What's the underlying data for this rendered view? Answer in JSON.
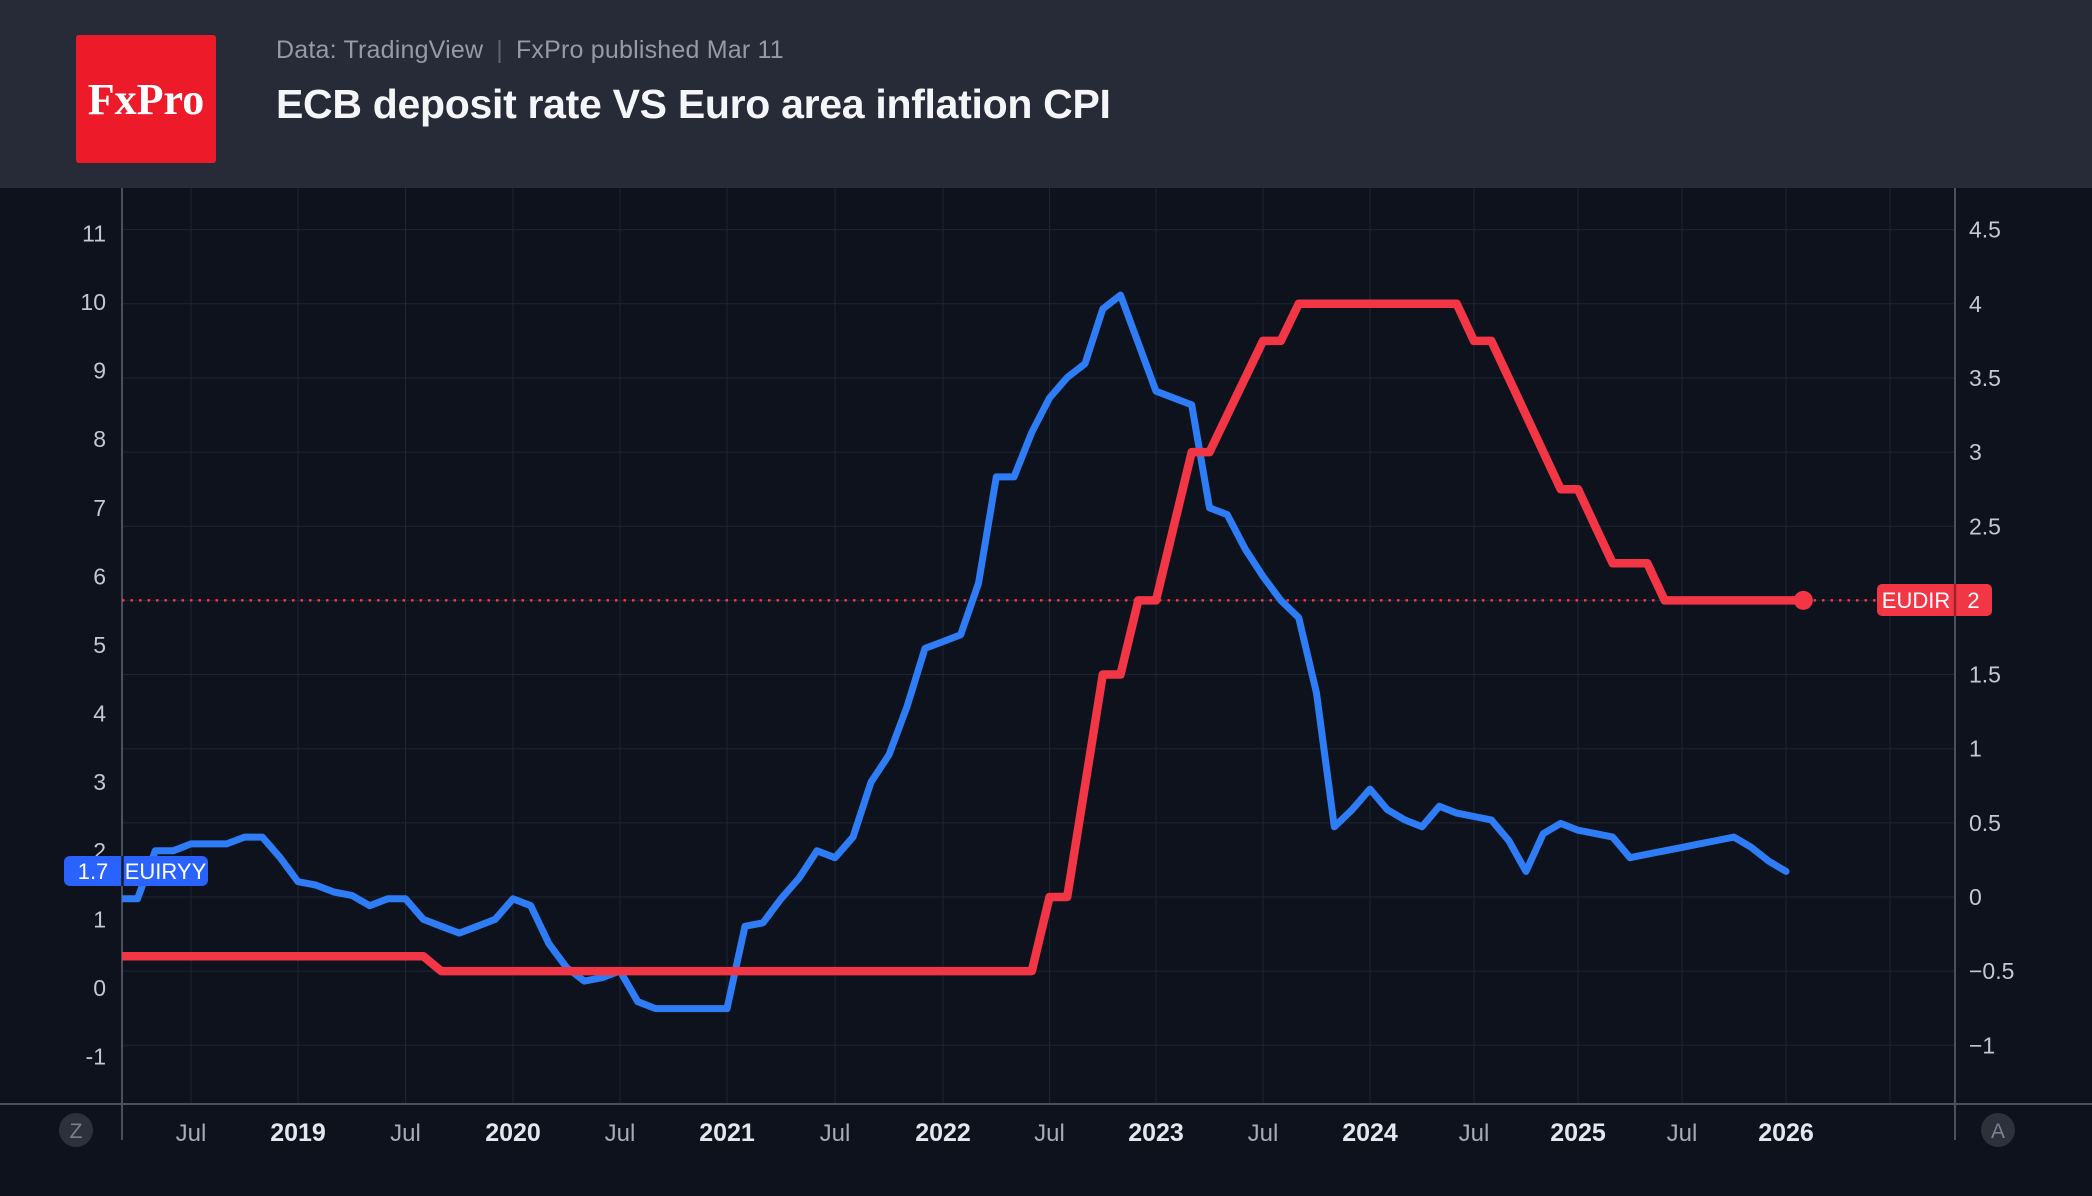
{
  "header": {
    "logo_text": "FxPro",
    "pre_title": "Data: TradingView",
    "separator": "|",
    "published": "FxPro published Mar 11",
    "title": "ECB deposit rate VS Euro area inflation CPI"
  },
  "buttons": {
    "timezone": "Z",
    "autoscale": "A"
  },
  "colors": {
    "page_bg": "#0d121d",
    "header_bg": "#272b38",
    "logo_bg": "#ed1b2a",
    "grid": "#202531",
    "axis_line": "#4b5060",
    "axis_text": "#c3c7d0",
    "x_month_text": "#a6abb6",
    "x_year_text": "#e4e7ed",
    "blue_line": "#2e7df6",
    "blue_badge": "#2962ff",
    "red": "#f23645",
    "button_bg": "#2c313c",
    "button_text": "#7a8090"
  },
  "chart_data": {
    "type": "line",
    "title": "ECB deposit rate VS Euro area inflation CPI",
    "subtitle": "Data: TradingView | FxPro published Mar 11",
    "interval": "monthly",
    "grid": true,
    "legend_position": "none",
    "x_axis": {
      "ticks": [
        {
          "t": 2018.5,
          "label": "Jul",
          "bold": false
        },
        {
          "t": 2019.0,
          "label": "2019",
          "bold": true
        },
        {
          "t": 2019.5,
          "label": "Jul",
          "bold": false
        },
        {
          "t": 2020.0,
          "label": "2020",
          "bold": true
        },
        {
          "t": 2020.5,
          "label": "Jul",
          "bold": false
        },
        {
          "t": 2021.0,
          "label": "2021",
          "bold": true
        },
        {
          "t": 2021.5,
          "label": "Jul",
          "bold": false
        },
        {
          "t": 2022.0,
          "label": "2022",
          "bold": true
        },
        {
          "t": 2022.5,
          "label": "Jul",
          "bold": false
        },
        {
          "t": 2023.0,
          "label": "2023",
          "bold": true
        },
        {
          "t": 2023.5,
          "label": "Jul",
          "bold": false
        },
        {
          "t": 2024.0,
          "label": "2024",
          "bold": true
        },
        {
          "t": 2024.5,
          "label": "Jul",
          "bold": false
        },
        {
          "t": 2025.0,
          "label": "2025",
          "bold": true
        },
        {
          "t": 2025.5,
          "label": "Jul",
          "bold": false
        },
        {
          "t": 2026.0,
          "label": "2026",
          "bold": true
        },
        {
          "t": 2026.5,
          "label": "",
          "bold": false
        }
      ]
    },
    "left_axis": {
      "series": "EUIRYY",
      "ticks": [
        11,
        10,
        9,
        8,
        7,
        6,
        5,
        4,
        3,
        2,
        1,
        0,
        -1
      ],
      "ylim": [
        -1.7,
        12.4
      ]
    },
    "right_axis": {
      "series": "EUDIR",
      "ticks": [
        4.5,
        4,
        3.5,
        3,
        2.5,
        2,
        1.5,
        1,
        0.5,
        0,
        -0.5,
        -1
      ],
      "ylim": [
        -1.4,
        4.8
      ],
      "grid_values": [
        4.5,
        4,
        3.5,
        3,
        2.5,
        2,
        1.5,
        1,
        0.5,
        0,
        -0.5,
        -1
      ]
    },
    "series": [
      {
        "name": "EUIRYY",
        "axis": "left",
        "color": "#2e7df6",
        "current_label": "1.7",
        "start_year": 2018,
        "start_month": 3,
        "values": [
          1.3,
          1.3,
          2.0,
          2.0,
          2.1,
          2.1,
          2.1,
          2.2,
          2.2,
          1.9,
          1.55,
          1.5,
          1.4,
          1.35,
          1.2,
          1.3,
          1.3,
          1.0,
          0.9,
          0.8,
          0.9,
          1.0,
          1.3,
          1.2,
          0.65,
          0.3,
          0.1,
          0.15,
          0.25,
          -0.2,
          -0.3,
          -0.3,
          -0.3,
          -0.3,
          -0.3,
          0.9,
          0.95,
          1.3,
          1.6,
          2.0,
          1.9,
          2.2,
          3.0,
          3.4,
          4.1,
          4.95,
          5.05,
          5.15,
          5.9,
          7.45,
          7.45,
          8.1,
          8.6,
          8.9,
          9.1,
          9.9,
          10.1,
          9.4,
          8.7,
          8.6,
          8.5,
          7.0,
          6.9,
          6.4,
          6.0,
          5.65,
          5.4,
          4.3,
          2.35,
          2.6,
          2.9,
          2.6,
          2.45,
          2.35,
          2.65,
          2.55,
          2.5,
          2.45,
          2.15,
          1.7,
          2.25,
          2.4,
          2.3,
          2.25,
          2.2,
          1.9,
          1.95,
          2.0,
          2.05,
          2.1,
          2.15,
          2.2,
          2.05,
          1.85,
          1.7
        ]
      },
      {
        "name": "EUDIR",
        "axis": "right",
        "color": "#f23645",
        "current_label": "2",
        "end_dot": true,
        "dotted_current_line": true,
        "start_year": 2018,
        "start_month": 3,
        "values": [
          -0.4,
          -0.4,
          -0.4,
          -0.4,
          -0.4,
          -0.4,
          -0.4,
          -0.4,
          -0.4,
          -0.4,
          -0.4,
          -0.4,
          -0.4,
          -0.4,
          -0.4,
          -0.4,
          -0.4,
          -0.4,
          -0.5,
          -0.5,
          -0.5,
          -0.5,
          -0.5,
          -0.5,
          -0.5,
          -0.5,
          -0.5,
          -0.5,
          -0.5,
          -0.5,
          -0.5,
          -0.5,
          -0.5,
          -0.5,
          -0.5,
          -0.5,
          -0.5,
          -0.5,
          -0.5,
          -0.5,
          -0.5,
          -0.5,
          -0.5,
          -0.5,
          -0.5,
          -0.5,
          -0.5,
          -0.5,
          -0.5,
          -0.5,
          -0.5,
          -0.5,
          0.0,
          0.0,
          0.75,
          1.5,
          1.5,
          2.0,
          2.0,
          2.5,
          3.0,
          3.0,
          3.25,
          3.5,
          3.75,
          3.75,
          4.0,
          4.0,
          4.0,
          4.0,
          4.0,
          4.0,
          4.0,
          4.0,
          4.0,
          4.0,
          3.75,
          3.75,
          3.5,
          3.25,
          3.0,
          2.75,
          2.75,
          2.5,
          2.25,
          2.25,
          2.25,
          2.0,
          2.0,
          2.0,
          2.0,
          2.0,
          2.0,
          2.0,
          2.0,
          2.0
        ]
      }
    ]
  }
}
